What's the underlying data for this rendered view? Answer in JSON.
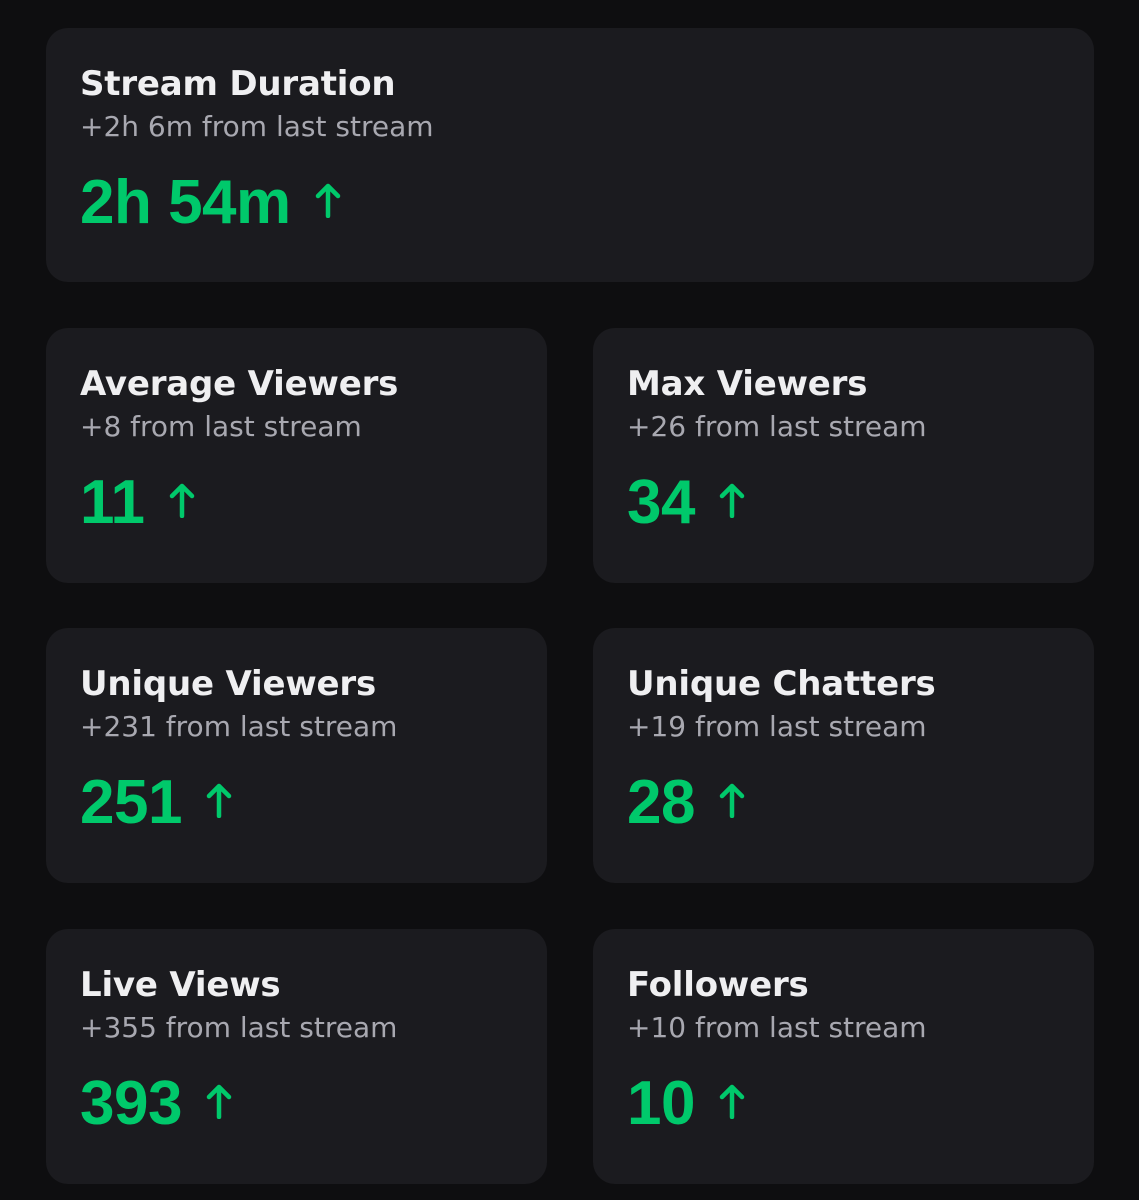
{
  "accent_color": "#00c96b",
  "stats": {
    "stream_duration": {
      "title": "Stream Duration",
      "change": "+2h 6m from last stream",
      "value": "2h 54m",
      "trend_icon": "arrow-up-icon"
    },
    "average_viewers": {
      "title": "Average Viewers",
      "change": "+8 from last stream",
      "value": "11",
      "trend_icon": "arrow-up-icon"
    },
    "max_viewers": {
      "title": "Max Viewers",
      "change": "+26 from last stream",
      "value": "34",
      "trend_icon": "arrow-up-icon"
    },
    "unique_viewers": {
      "title": "Unique Viewers",
      "change": "+231 from last stream",
      "value": "251",
      "trend_icon": "arrow-up-icon"
    },
    "unique_chatters": {
      "title": "Unique Chatters",
      "change": "+19 from last stream",
      "value": "28",
      "trend_icon": "arrow-up-icon"
    },
    "live_views": {
      "title": "Live Views",
      "change": "+355 from last stream",
      "value": "393",
      "trend_icon": "arrow-up-icon"
    },
    "followers": {
      "title": "Followers",
      "change": "+10 from last stream",
      "value": "10",
      "trend_icon": "arrow-up-icon"
    }
  }
}
